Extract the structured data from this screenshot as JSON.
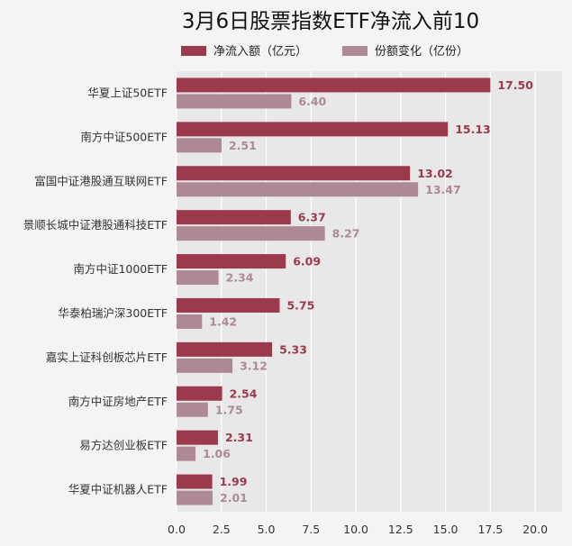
{
  "chart_data": {
    "type": "bar",
    "orientation": "horizontal",
    "title": "3月6日股票指数ETF净流入前10",
    "xlabel": "",
    "ylabel": "",
    "xlim": [
      0,
      21.5
    ],
    "xticks": [
      "0.0",
      "2.5",
      "5.0",
      "7.5",
      "10.0",
      "12.5",
      "15.0",
      "17.5",
      "20.0"
    ],
    "grid": true,
    "legend_position": "top-center",
    "categories": [
      "华夏上证50ETF",
      "南方中证500ETF",
      "富国中证港股通互联网ETF",
      "景顺长城中证港股通科技ETF",
      "南方中证1000ETF",
      "华泰柏瑞沪深300ETF",
      "嘉实上证科创板芯片ETF",
      "南方中证房地产ETF",
      "易方达创业板ETF",
      "华夏中证机器人ETF"
    ],
    "series": [
      {
        "name": "净流入额（亿元）",
        "color": "#9b3a4c",
        "values": [
          17.5,
          15.13,
          13.02,
          6.37,
          6.09,
          5.75,
          5.33,
          2.54,
          2.31,
          1.99
        ],
        "labels": [
          "17.50",
          "15.13",
          "13.02",
          "6.37",
          "6.09",
          "5.75",
          "5.33",
          "2.54",
          "2.31",
          "1.99"
        ]
      },
      {
        "name": "份额变化（亿份）",
        "color": "#ad8a93",
        "values": [
          6.4,
          2.51,
          13.47,
          8.27,
          2.34,
          1.42,
          3.12,
          1.75,
          1.06,
          2.01
        ],
        "labels": [
          "6.40",
          "2.51",
          "13.47",
          "8.27",
          "2.34",
          "1.42",
          "3.12",
          "1.75",
          "1.06",
          "2.01"
        ]
      }
    ]
  },
  "colors": {
    "plot_background": "#e8e8e8",
    "page_background": "#f4f4f4",
    "grid": "#ffffff"
  }
}
